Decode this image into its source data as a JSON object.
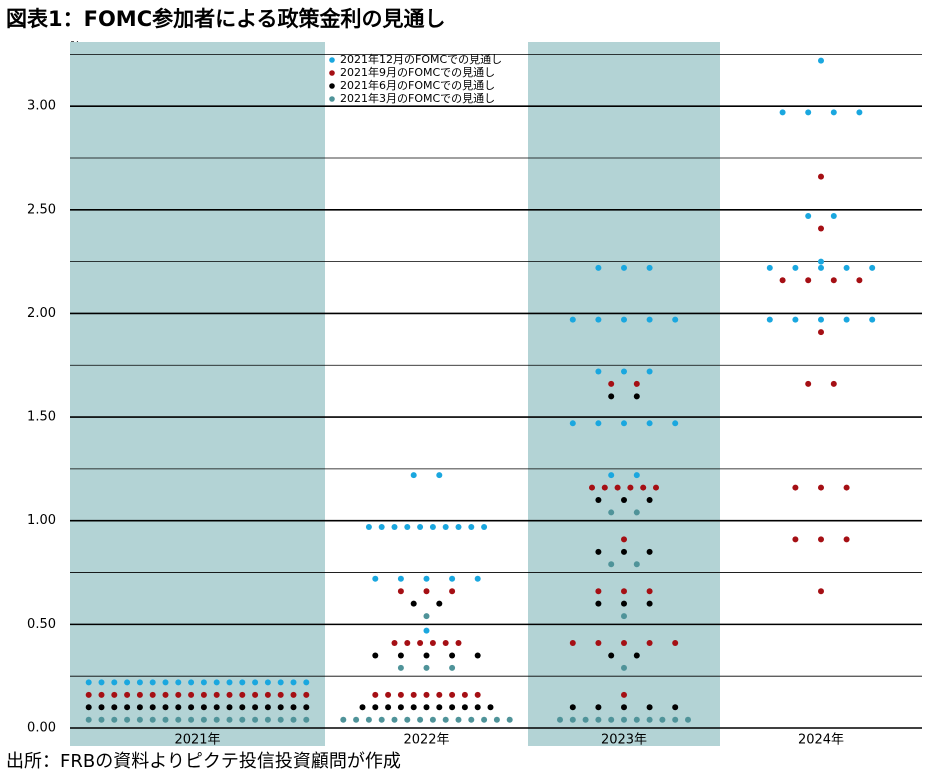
{
  "chart_data": {
    "type": "dot",
    "title": "図表1：FOMC参加者による政策金利の見通し",
    "y_label": "%",
    "source": "出所：FRBの資料よりピクテ投信投資顧問が作成",
    "categories": [
      "2021年",
      "2022年",
      "2023年",
      "2024年"
    ],
    "band_color": "#b3d3d5",
    "ylim": [
      0,
      3.3
    ],
    "yticks": [
      {
        "value": 0,
        "label": "0.00"
      },
      {
        "value": 0.5,
        "label": "0.50"
      },
      {
        "value": 1,
        "label": "1.00"
      },
      {
        "value": 1.5,
        "label": "1.50"
      },
      {
        "value": 2,
        "label": "2.00"
      },
      {
        "value": 2.5,
        "label": "2.50"
      },
      {
        "value": 3,
        "label": "3.00"
      }
    ],
    "minor_yticks": [
      0.25,
      0.75,
      1.25,
      1.75,
      2.25,
      2.75,
      3.25
    ],
    "grid": true,
    "series": [
      {
        "name": "2021年12月のFOMCでの見通し",
        "color": "#1aa7df",
        "values": [
          [
            {
              "value": 0.22,
              "count": 18
            }
          ],
          [
            {
              "value": 1.22,
              "count": 2
            },
            {
              "value": 0.97,
              "count": 10
            },
            {
              "value": 0.72,
              "count": 5
            },
            {
              "value": 0.47,
              "count": 1
            }
          ],
          [
            {
              "value": 2.22,
              "count": 3
            },
            {
              "value": 1.97,
              "count": 5
            },
            {
              "value": 1.72,
              "count": 3
            },
            {
              "value": 1.47,
              "count": 5
            },
            {
              "value": 1.22,
              "count": 2
            }
          ],
          [
            {
              "value": 3.22,
              "count": 1
            },
            {
              "value": 2.97,
              "count": 4
            },
            {
              "value": 2.47,
              "count": 2
            },
            {
              "value": 2.25,
              "count": 1
            },
            {
              "value": 2.22,
              "count": 5
            },
            {
              "value": 1.97,
              "count": 5
            }
          ]
        ]
      },
      {
        "name": "2021年9月のFOMCでの見通し",
        "color": "#a50f14",
        "values": [
          [
            {
              "value": 0.16,
              "count": 18
            }
          ],
          [
            {
              "value": 0.66,
              "count": 3
            },
            {
              "value": 0.41,
              "count": 6
            },
            {
              "value": 0.16,
              "count": 9
            }
          ],
          [
            {
              "value": 1.66,
              "count": 2
            },
            {
              "value": 1.16,
              "count": 6
            },
            {
              "value": 0.91,
              "count": 1
            },
            {
              "value": 0.66,
              "count": 3
            },
            {
              "value": 0.41,
              "count": 5
            },
            {
              "value": 0.16,
              "count": 1
            }
          ],
          [
            {
              "value": 2.66,
              "count": 1
            },
            {
              "value": 2.41,
              "count": 1
            },
            {
              "value": 2.16,
              "count": 4
            },
            {
              "value": 1.91,
              "count": 1
            },
            {
              "value": 1.66,
              "count": 2
            },
            {
              "value": 1.16,
              "count": 3
            },
            {
              "value": 0.91,
              "count": 3
            },
            {
              "value": 0.66,
              "count": 1
            }
          ]
        ]
      },
      {
        "name": "2021年6月のFOMCでの見通し",
        "color": "#000000",
        "values": [
          [
            {
              "value": 0.1,
              "count": 18
            }
          ],
          [
            {
              "value": 0.6,
              "count": 2
            },
            {
              "value": 0.35,
              "count": 5
            },
            {
              "value": 0.1,
              "count": 11
            }
          ],
          [
            {
              "value": 1.6,
              "count": 2
            },
            {
              "value": 1.1,
              "count": 3
            },
            {
              "value": 0.85,
              "count": 3
            },
            {
              "value": 0.6,
              "count": 3
            },
            {
              "value": 0.35,
              "count": 2
            },
            {
              "value": 0.1,
              "count": 5
            }
          ],
          []
        ]
      },
      {
        "name": "2021年3月のFOMCでの見通し",
        "color": "#4f9399",
        "values": [
          [
            {
              "value": 0.04,
              "count": 18
            }
          ],
          [
            {
              "value": 0.54,
              "count": 1
            },
            {
              "value": 0.29,
              "count": 3
            },
            {
              "value": 0.04,
              "count": 14
            }
          ],
          [
            {
              "value": 1.04,
              "count": 2
            },
            {
              "value": 0.79,
              "count": 2
            },
            {
              "value": 0.54,
              "count": 1
            },
            {
              "value": 0.29,
              "count": 1
            },
            {
              "value": 0.04,
              "count": 11
            }
          ],
          []
        ]
      }
    ]
  }
}
